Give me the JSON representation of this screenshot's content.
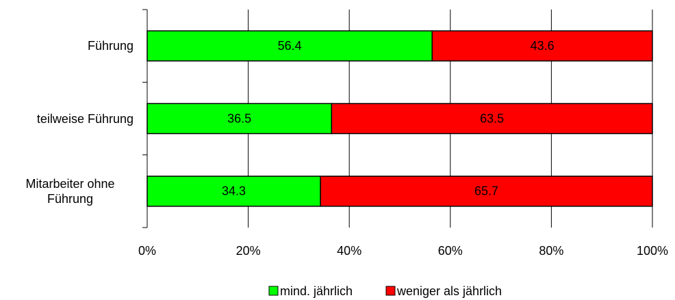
{
  "chart_data": {
    "type": "stacked_bar_horizontal",
    "categories": [
      "Führung",
      "teilweise Führung",
      "Mitarbeiter ohne Führung"
    ],
    "series": [
      {
        "name": "mind. jährlich",
        "color": "#00ff00",
        "values": [
          56.4,
          36.5,
          34.3
        ]
      },
      {
        "name": "weniger als jährlich",
        "color": "#ff0000",
        "values": [
          43.6,
          63.5,
          65.7
        ]
      }
    ],
    "xlim": [
      0,
      100
    ],
    "xticks": [
      {
        "value": 0,
        "label": "0%"
      },
      {
        "value": 20,
        "label": "20%"
      },
      {
        "value": 40,
        "label": "40%"
      },
      {
        "value": 60,
        "label": "60%"
      },
      {
        "value": 80,
        "label": "80%"
      },
      {
        "value": 100,
        "label": "100%"
      }
    ],
    "grid": true,
    "legend": "bottom"
  }
}
